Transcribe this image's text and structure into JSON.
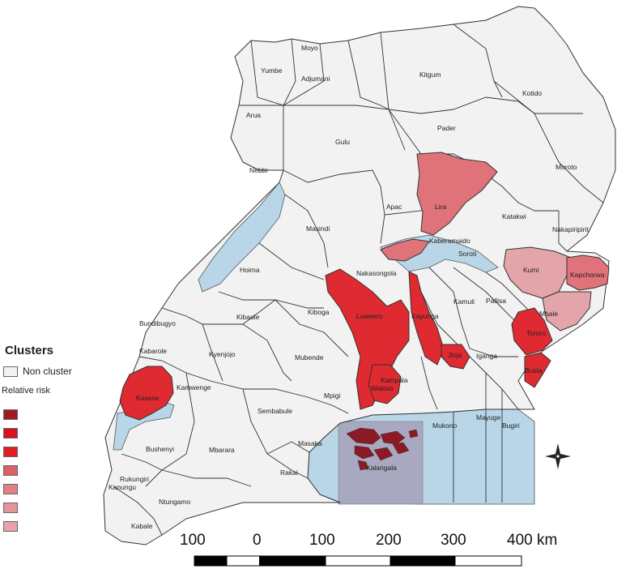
{
  "legend": {
    "title": "Clusters",
    "non_cluster_label": "Non cluster",
    "relative_risk_label": "Relative risk",
    "non_cluster_color": "#f2f2f2",
    "risk_colors": [
      "#9e1b24",
      "#d9121e",
      "#e01d25",
      "#de5f68",
      "#e17f86",
      "#e4959b",
      "#e6a3a8"
    ]
  },
  "colors": {
    "land": "#f2f2f2",
    "water": "#b8d6e8",
    "high_cluster": "#de2a30",
    "medium_cluster": "#e0727a",
    "low_cluster": "#e4a5aa",
    "dark_cluster": "#8b1a24",
    "lake_region": "#a8a8c0"
  },
  "districts": [
    "Yumbe",
    "Moyo",
    "Adjumani",
    "Arua",
    "Kitgum",
    "Kotido",
    "Gulu",
    "Pader",
    "Nebbi",
    "Moroto",
    "Apac",
    "Lira",
    "Katakwi",
    "Nakapiripirit",
    "Masindi",
    "Kaberamaido",
    "Soroti",
    "Hoima",
    "Nakasongola",
    "Kumi",
    "Kapchorwa",
    "Kamuli",
    "Pallisa",
    "Kibaale",
    "Kiboga",
    "Luweero",
    "Kayunga",
    "Mbale",
    "Bundibugyo",
    "Tororo",
    "Kabarole",
    "Kyenjojo",
    "Mubende",
    "Iganga",
    "Jinja",
    "Busia",
    "Kampala",
    "Kasese",
    "Kamwenge",
    "Wakiso",
    "Mpigi",
    "Sembabule",
    "Mukono",
    "Mayuge",
    "Bugiri",
    "Bushenyi",
    "Mbarara",
    "Masaka",
    "Kalangala",
    "Rukungiri",
    "Kanungu",
    "Rakai",
    "Ntungamo",
    "Kabale"
  ],
  "scale_bar": {
    "labels": [
      "100",
      "0",
      "100",
      "200",
      "300",
      "400 km"
    ]
  },
  "north_arrow": "compass-rose"
}
